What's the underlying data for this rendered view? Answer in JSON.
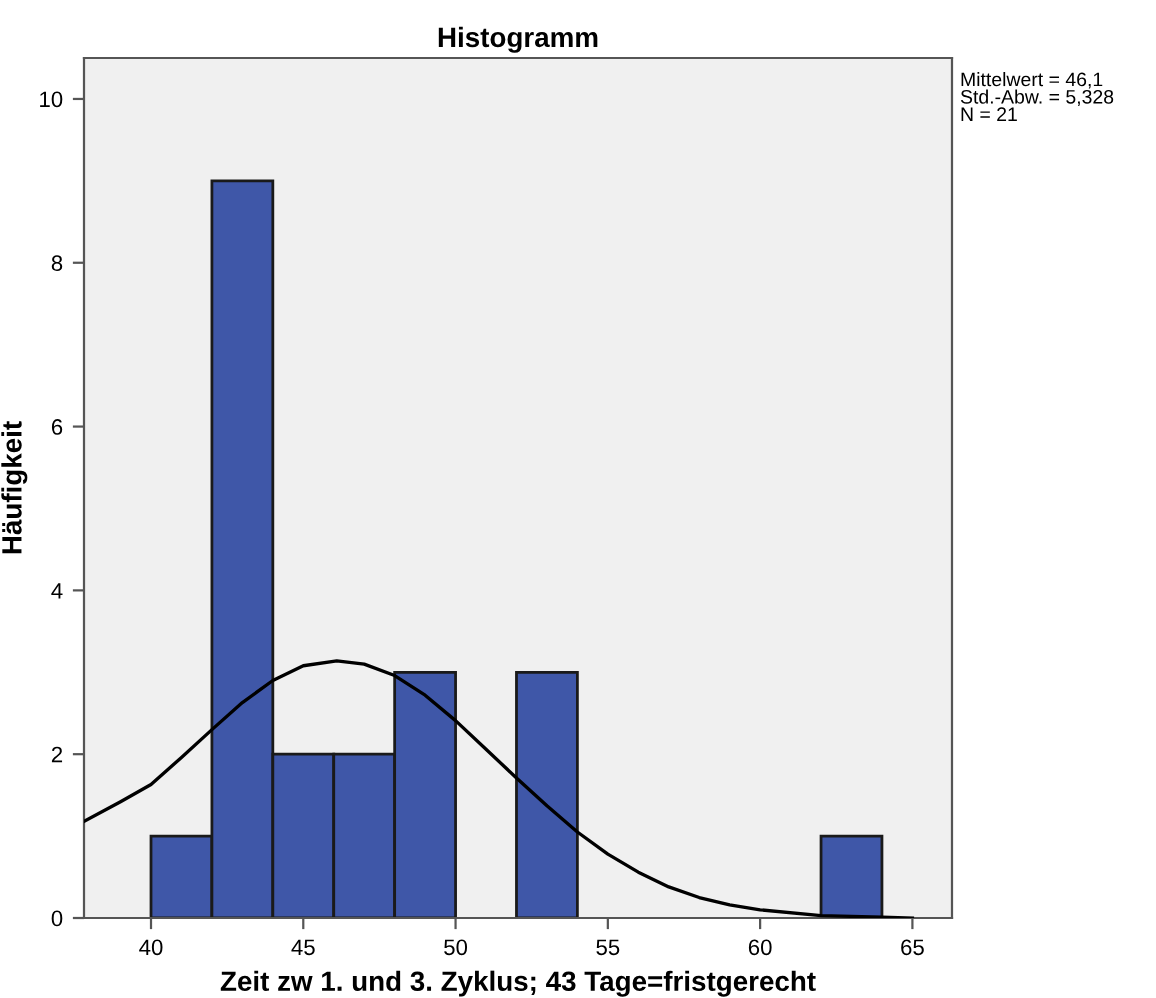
{
  "chart_data": {
    "type": "histogram",
    "title": "Histogramm",
    "xlabel": "Zeit zw 1. und 3. Zyklus; 43 Tage=fristgerecht",
    "ylabel": "Häufigkeit",
    "bins": [
      40,
      42,
      44,
      46,
      48,
      50,
      52,
      54,
      56,
      58,
      60,
      62,
      64
    ],
    "values": [
      1,
      9,
      2,
      2,
      3,
      0,
      3,
      0,
      0,
      0,
      0,
      1
    ],
    "color": "#3f57a8",
    "series": [
      {
        "type": "line",
        "color": "#000000",
        "x": [
          37.8,
          39,
          40,
          41,
          42,
          43,
          44,
          45,
          46.1,
          47,
          48,
          49,
          50,
          51,
          52,
          53,
          54,
          55,
          56,
          57,
          58,
          59,
          60,
          62,
          64,
          65
        ],
        "values": [
          1.18,
          1.42,
          1.63,
          1.96,
          2.3,
          2.63,
          2.9,
          3.08,
          3.14,
          3.1,
          2.96,
          2.72,
          2.41,
          2.06,
          1.71,
          1.37,
          1.05,
          0.78,
          0.56,
          0.38,
          0.25,
          0.16,
          0.1,
          0.03,
          0.01,
          0.0
        ]
      }
    ],
    "xlim": [
      37.8,
      66.3
    ],
    "xticks": [
      40,
      45,
      50,
      55,
      60,
      65
    ],
    "ylim": [
      0,
      10.5
    ],
    "yticks": [
      0,
      2,
      4,
      6,
      8,
      10
    ],
    "annotations": [
      "Mittelwert = 46,1\nStd.-Abw. = 5,328\nN = 21"
    ],
    "grid": false,
    "legend": false
  }
}
